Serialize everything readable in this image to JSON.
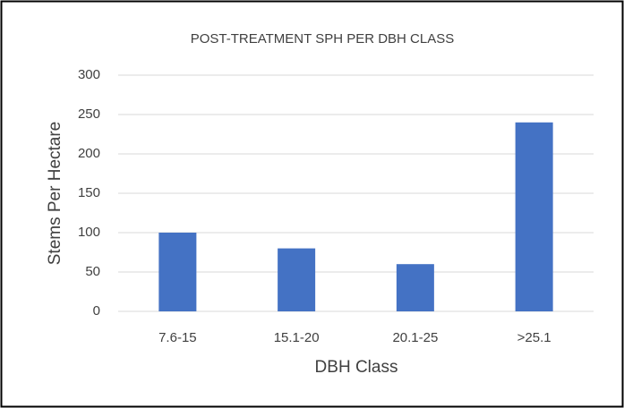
{
  "chart_data": {
    "type": "bar",
    "title": "POST-TREATMENT SPH PER DBH CLASS",
    "x_label": "DBH Class",
    "y_label": "Stems Per Hectare",
    "categories": [
      "7.6-15",
      "15.1-20",
      "20.1-25",
      ">25.1"
    ],
    "values": [
      100,
      80,
      60,
      240
    ],
    "color": "#4472c4",
    "ylim": [
      0,
      300
    ],
    "yticks": [
      0,
      50,
      100,
      150,
      200,
      250,
      300
    ],
    "grid": true
  }
}
